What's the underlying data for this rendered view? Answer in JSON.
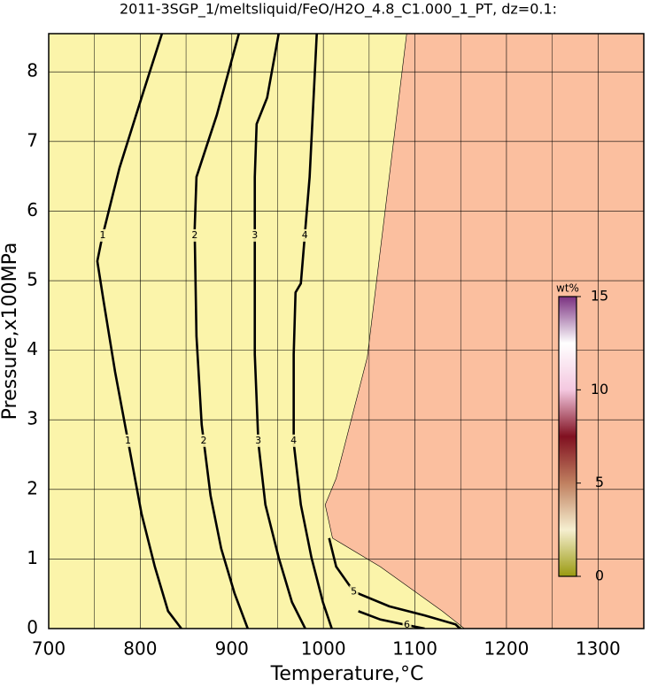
{
  "chart_data": {
    "type": "contour",
    "title": "2011-3SGP_1/meltsliquid/FeO/H2O_4.8_C1.000_1_PT, dz=0.1:",
    "x_label": "Temperature,°C",
    "y_label": "Pressure,x100MPa",
    "xlim": [
      700,
      1350
    ],
    "ylim": [
      0,
      8.55
    ],
    "xticks": [
      700,
      800,
      900,
      1000,
      1100,
      1200,
      1300
    ],
    "yticks": [
      0,
      1,
      2,
      3,
      4,
      5,
      6,
      7,
      8
    ],
    "xgrid": [
      750,
      850,
      950,
      1050,
      1150,
      1250
    ],
    "grid": true,
    "background_color": "#fbf4aa",
    "regions": [
      {
        "color": "#fbbf9f",
        "x": [
          1091,
          1350,
          1350,
          1154,
          1130,
          1062,
          1010,
          1002,
          1014,
          1048
        ],
        "y": [
          8.55,
          8.55,
          0,
          0,
          0.25,
          0.89,
          1.3,
          1.78,
          2.16,
          3.9
        ]
      }
    ],
    "contours": [
      {
        "level": 1,
        "x": [
          823.7,
          801.4,
          777.3,
          758.0,
          753.1,
          759.9,
          772.5,
          787.0,
          801.4,
          815.9,
          830.4,
          844.9
        ],
        "y": [
          8.55,
          7.63,
          6.62,
          5.6,
          5.28,
          4.71,
          3.69,
          2.67,
          1.65,
          0.89,
          0.25,
          0
        ]
      },
      {
        "level": 2,
        "x": [
          907.7,
          883.6,
          861.4,
          859.4,
          861.4,
          867.1,
          876.8,
          888.4,
          902.9,
          917.4
        ],
        "y": [
          8.55,
          7.38,
          6.49,
          5.73,
          4.2,
          2.93,
          1.91,
          1.15,
          0.51,
          0
        ]
      },
      {
        "level": 3,
        "x": [
          951.2,
          938.6,
          927.1,
          925.1,
          925.1,
          929.0,
          936.7,
          951.2,
          965.7,
          980.2
        ],
        "y": [
          8.55,
          7.63,
          7.25,
          6.49,
          3.94,
          2.67,
          1.78,
          1.02,
          0.38,
          0
        ]
      },
      {
        "level": 4,
        "x": [
          992.8,
          985.0,
          975.4,
          969.6,
          967.6,
          967.6,
          975.4,
          987.0,
          999.5,
          1009.2
        ],
        "y": [
          8.55,
          6.49,
          4.96,
          4.83,
          3.94,
          2.67,
          1.78,
          1.02,
          0.38,
          0
        ]
      },
      {
        "level": 5,
        "x": [
          1006.3,
          1014.0,
          1033.3,
          1072.0,
          1110.6,
          1144.4,
          1149.3
        ],
        "y": [
          1.3,
          0.89,
          0.53,
          0.32,
          0.19,
          0.06,
          0
        ]
      },
      {
        "level": 6,
        "x": [
          1038.2,
          1062.3,
          1091.3,
          1110.6
        ],
        "y": [
          0.25,
          0.13,
          0.05,
          0
        ]
      }
    ],
    "colorbar": {
      "label": "wt%",
      "lim": [
        0,
        15
      ],
      "ticks": [
        0,
        5,
        10,
        15
      ],
      "colors": [
        "#9a9a10",
        "#f6efd0",
        "#c08060",
        "#801020",
        "#f4c8e0",
        "#ffffff",
        "#7a3080"
      ]
    }
  }
}
